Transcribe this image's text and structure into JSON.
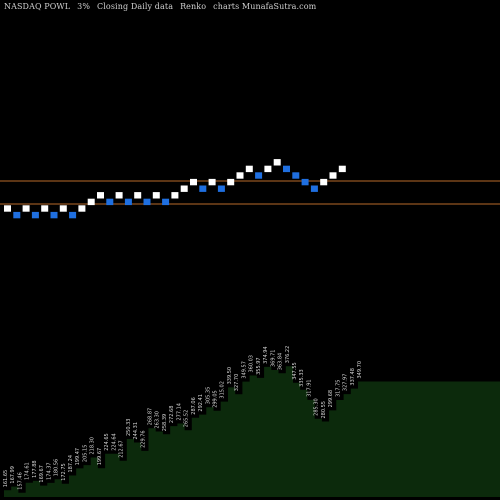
{
  "header": {
    "ticker": "NASDAQ POWL",
    "box_size": "3%",
    "basis": "Closing Daily data",
    "chart_kind": "Renko",
    "suffix": "charts MunafaSutra.com"
  },
  "colors": {
    "up_brick": "#ffffff",
    "down_brick": "#1f6fe0",
    "reference_line": "#b86a2a",
    "area_fill": "#0c2a0c",
    "label_text": "#d8d8d8",
    "background": "#000000"
  },
  "chart_data": {
    "type": "renko",
    "box_size_percent": 3,
    "bricks": [
      {
        "dir": "up"
      },
      {
        "dir": "down"
      },
      {
        "dir": "up"
      },
      {
        "dir": "down"
      },
      {
        "dir": "up"
      },
      {
        "dir": "down"
      },
      {
        "dir": "up"
      },
      {
        "dir": "down"
      },
      {
        "dir": "up"
      },
      {
        "dir": "up"
      },
      {
        "dir": "up"
      },
      {
        "dir": "down"
      },
      {
        "dir": "up"
      },
      {
        "dir": "down"
      },
      {
        "dir": "up"
      },
      {
        "dir": "down"
      },
      {
        "dir": "up"
      },
      {
        "dir": "down"
      },
      {
        "dir": "up"
      },
      {
        "dir": "up"
      },
      {
        "dir": "up"
      },
      {
        "dir": "down"
      },
      {
        "dir": "up"
      },
      {
        "dir": "down"
      },
      {
        "dir": "up"
      },
      {
        "dir": "up"
      },
      {
        "dir": "up"
      },
      {
        "dir": "down"
      },
      {
        "dir": "up"
      },
      {
        "dir": "up"
      },
      {
        "dir": "down"
      },
      {
        "dir": "down"
      },
      {
        "dir": "down"
      },
      {
        "dir": "down"
      },
      {
        "dir": "up"
      },
      {
        "dir": "up"
      },
      {
        "dir": "up"
      }
    ],
    "reference_lines": [
      "support",
      "resistance"
    ],
    "price_labels": [
      "161.65",
      "167.99",
      "157.46",
      "174.61",
      "177.88",
      "169.67",
      "174.37",
      "180.56",
      "172.75",
      "187.24",
      "199.47",
      "205.15",
      "218.30",
      "199.67",
      "224.65",
      "224.64",
      "212.67",
      "250.33",
      "244.31",
      "229.76",
      "268.87",
      "263.30",
      "258.39",
      "272.68",
      "277.14",
      "265.52",
      "287.06",
      "292.41",
      "305.35",
      "299.05",
      "315.02",
      "339.50",
      "327.70",
      "349.57",
      "360.03",
      "355.97",
      "374.94",
      "369.71",
      "363.84",
      "376.22",
      "347.55",
      "335.33",
      "317.91",
      "285.30",
      "280.55",
      "299.68",
      "317.75",
      "327.97",
      "337.48",
      "349.70"
    ]
  }
}
